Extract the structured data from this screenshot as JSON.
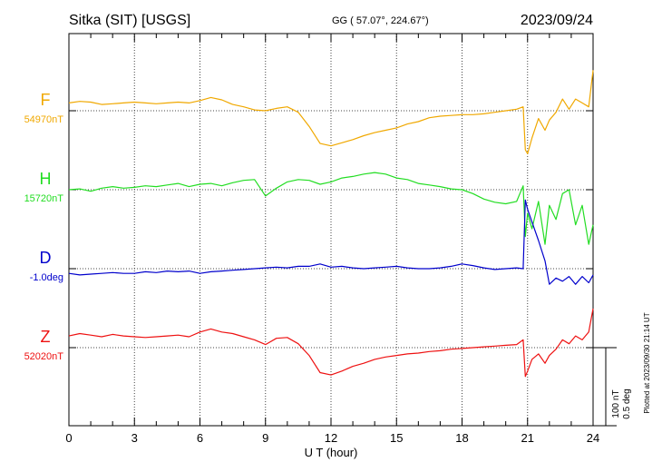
{
  "header": {
    "station": "Sitka (SIT)  [USGS]",
    "coords": "GG ( 57.07°, 224.67°)",
    "date": "2023/09/24"
  },
  "plotted_note": "Plotted at 2023/09/30 21:14 UT",
  "scale": {
    "nt": "100 nT",
    "deg": "0.5 deg",
    "nt_value": 100,
    "deg_value": 0.5
  },
  "chart_data": {
    "type": "line",
    "xlabel": "U T (hour)",
    "xlim": [
      0,
      24
    ],
    "x_ticks": [
      0,
      3,
      6,
      9,
      12,
      15,
      18,
      21,
      24
    ],
    "grid": true,
    "x": [
      0,
      0.5,
      1,
      1.5,
      2,
      2.5,
      3,
      3.5,
      4,
      4.5,
      5,
      5.5,
      6,
      6.5,
      7,
      7.5,
      8,
      8.5,
      9,
      9.5,
      10,
      10.5,
      11,
      11.5,
      12,
      12.5,
      13,
      13.5,
      14,
      14.5,
      15,
      15.5,
      16,
      16.5,
      17,
      17.5,
      18,
      18.5,
      19,
      19.5,
      20,
      20.5,
      20.8,
      20.9,
      21,
      21.2,
      21.5,
      21.8,
      22,
      22.3,
      22.6,
      22.9,
      23.2,
      23.5,
      23.8,
      24
    ],
    "series": [
      {
        "name": "F",
        "baseline_label": "54970nT",
        "unit": "nT",
        "baseline": 54970,
        "color": "#f0a800",
        "values": [
          54980,
          54982,
          54981,
          54978,
          54979,
          54980,
          54981,
          54980,
          54979,
          54980,
          54981,
          54980,
          54983,
          54987,
          54984,
          54978,
          54975,
          54971,
          54970,
          54973,
          54975,
          54968,
          54950,
          54928,
          54925,
          54929,
          54933,
          54938,
          54942,
          54945,
          54948,
          54953,
          54956,
          54961,
          54963,
          54964,
          54965,
          54965,
          54966,
          54968,
          54970,
          54972,
          54975,
          54920,
          54915,
          54935,
          54960,
          54945,
          54958,
          54968,
          54985,
          54972,
          54985,
          54980,
          54975,
          55022
        ]
      },
      {
        "name": "H",
        "baseline_label": "15720nT",
        "unit": "nT",
        "baseline": 15720,
        "color": "#22dd22",
        "values": [
          15720,
          15721,
          15718,
          15722,
          15724,
          15722,
          15723,
          15725,
          15724,
          15726,
          15728,
          15724,
          15727,
          15728,
          15725,
          15729,
          15732,
          15733,
          15712,
          15722,
          15730,
          15733,
          15732,
          15727,
          15730,
          15735,
          15737,
          15740,
          15742,
          15740,
          15735,
          15733,
          15728,
          15726,
          15724,
          15721,
          15720,
          15715,
          15708,
          15704,
          15702,
          15705,
          15725,
          15660,
          15690,
          15670,
          15705,
          15650,
          15700,
          15682,
          15715,
          15720,
          15675,
          15700,
          15650,
          15675
        ]
      },
      {
        "name": "D",
        "baseline_label": "-1.0deg",
        "unit": "deg",
        "baseline": -1.0,
        "color": "#0000cc",
        "values": [
          -1.03,
          -1.04,
          -1.035,
          -1.03,
          -1.025,
          -1.03,
          -1.03,
          -1.02,
          -1.025,
          -1.015,
          -1.02,
          -1.015,
          -1.03,
          -1.02,
          -1.015,
          -1.01,
          -1.005,
          -1.0,
          -0.995,
          -0.99,
          -0.995,
          -0.985,
          -0.985,
          -0.97,
          -0.99,
          -0.985,
          -0.995,
          -1.0,
          -0.995,
          -0.99,
          -0.985,
          -0.995,
          -1.0,
          -1.0,
          -0.995,
          -0.985,
          -0.97,
          -0.98,
          -0.995,
          -1.005,
          -1.0,
          -0.995,
          -1.0,
          -0.56,
          -0.62,
          -0.7,
          -0.82,
          -0.95,
          -1.1,
          -1.06,
          -1.08,
          -1.05,
          -1.1,
          -1.05,
          -1.09,
          -1.04
        ]
      },
      {
        "name": "Z",
        "baseline_label": "52020nT",
        "unit": "nT",
        "baseline": 52020,
        "color": "#ee1111",
        "values": [
          52035,
          52038,
          52036,
          52034,
          52037,
          52035,
          52034,
          52033,
          52034,
          52035,
          52036,
          52034,
          52040,
          52044,
          52040,
          52038,
          52034,
          52030,
          52024,
          52032,
          52033,
          52025,
          52010,
          51988,
          51985,
          51990,
          51996,
          52000,
          52005,
          52008,
          52010,
          52012,
          52013,
          52015,
          52016,
          52018,
          52019,
          52020,
          52021,
          52022,
          52023,
          52024,
          52030,
          51983,
          51990,
          52005,
          52012,
          52000,
          52010,
          52018,
          52030,
          52025,
          52035,
          52030,
          52040,
          52070
        ]
      }
    ]
  }
}
